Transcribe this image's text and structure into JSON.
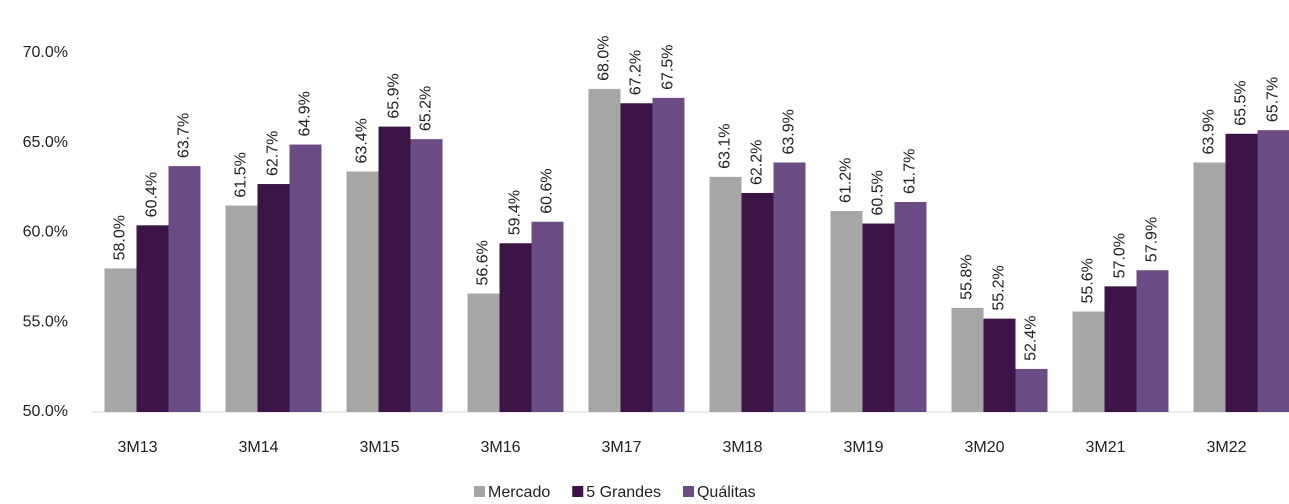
{
  "chart_data": {
    "type": "bar",
    "categories": [
      "3M13",
      "3M14",
      "3M15",
      "3M16",
      "3M17",
      "3M18",
      "3M19",
      "3M20",
      "3M21",
      "3M22"
    ],
    "series": [
      {
        "name": "Mercado",
        "color": "#a6a6a6",
        "values": [
          58.0,
          61.5,
          63.4,
          56.6,
          68.0,
          63.1,
          61.2,
          55.8,
          55.6,
          63.9
        ],
        "value_labels": [
          "58.0%",
          "61.5%",
          "63.4%",
          "56.6%",
          "68.0%",
          "63.1%",
          "61.2%",
          "55.8%",
          "55.6%",
          "63.9%"
        ]
      },
      {
        "name": "5 Grandes",
        "color": "#3d1446",
        "values": [
          60.4,
          62.7,
          65.9,
          59.4,
          67.2,
          62.2,
          60.5,
          55.2,
          57.0,
          65.5
        ],
        "value_labels": [
          "60.4%",
          "62.7%",
          "65.9%",
          "59.4%",
          "67.2%",
          "62.2%",
          "60.5%",
          "55.2%",
          "57.0%",
          "65.5%"
        ]
      },
      {
        "name": "Quálitas",
        "color": "#6b4c85",
        "values": [
          63.7,
          64.9,
          65.2,
          60.6,
          67.5,
          63.9,
          61.7,
          52.4,
          57.9,
          65.7
        ],
        "value_labels": [
          "63.7%",
          "64.9%",
          "65.2%",
          "60.6%",
          "67.5%",
          "63.9%",
          "61.7%",
          "52.4%",
          "57.9%",
          "65.7%"
        ]
      }
    ],
    "ylim": [
      50,
      70
    ],
    "yticks": [
      {
        "value": 50,
        "label": "50.0%"
      },
      {
        "value": 55,
        "label": "55.0%"
      },
      {
        "value": 60,
        "label": "60.0%"
      },
      {
        "value": 65,
        "label": "65.0%"
      },
      {
        "value": 70,
        "label": "70.0%"
      }
    ],
    "grid": false,
    "legend": "bottom"
  }
}
